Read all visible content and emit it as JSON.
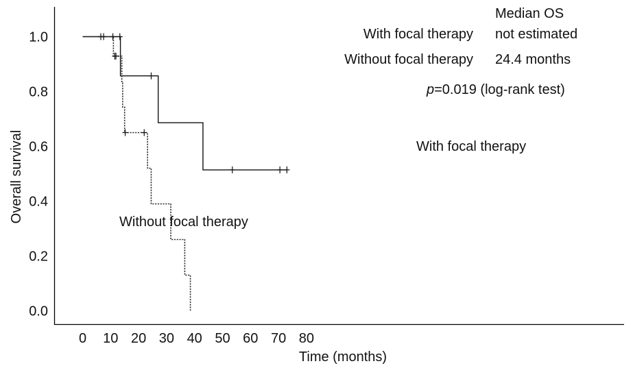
{
  "chart_data": {
    "type": "line",
    "subtype": "kaplan-meier",
    "xlabel": "Time (months)",
    "ylabel": "Overall survival",
    "xlim": [
      0,
      80
    ],
    "ylim": [
      0,
      1.0
    ],
    "xticks": [
      "0",
      "10",
      "20",
      "30",
      "40",
      "50",
      "60",
      "70",
      "80"
    ],
    "yticks": [
      "0.0",
      "0.2",
      "0.4",
      "0.6",
      "0.8",
      "1.0"
    ],
    "grid": false,
    "series": [
      {
        "name": "With focal therapy",
        "style": "solid",
        "steps": [
          [
            0,
            1.0
          ],
          [
            13.5,
            0.857
          ],
          [
            27,
            0.686
          ],
          [
            43,
            0.514
          ],
          [
            73,
            0.514
          ]
        ],
        "censored": [
          [
            6.5,
            1.0
          ],
          [
            7.5,
            1.0
          ],
          [
            10.8,
            1.0
          ],
          [
            13.3,
            1.0
          ],
          [
            24.5,
            0.857
          ],
          [
            53.5,
            0.514
          ],
          [
            70.5,
            0.514
          ],
          [
            73,
            0.514
          ]
        ]
      },
      {
        "name": "Without focal therapy",
        "style": "dotted",
        "steps": [
          [
            0,
            1.0
          ],
          [
            11,
            0.929
          ],
          [
            14,
            0.836
          ],
          [
            14.3,
            0.743
          ],
          [
            15,
            0.65
          ],
          [
            23.2,
            0.52
          ],
          [
            24.5,
            0.39
          ],
          [
            31.5,
            0.26
          ],
          [
            36.5,
            0.13
          ],
          [
            38.5,
            0.0
          ]
        ],
        "censored": [
          [
            11.5,
            0.929
          ],
          [
            11.9,
            0.929
          ],
          [
            15.2,
            0.65
          ],
          [
            22,
            0.65
          ]
        ]
      }
    ],
    "table": {
      "header": "Median OS",
      "rows": [
        {
          "label": "With focal therapy",
          "value": "not estimated"
        },
        {
          "label": "Without focal therapy",
          "value": "24.4 months"
        }
      ]
    },
    "pvalue": {
      "symbol": "p",
      "text": "=0.019 (log-rank test)"
    },
    "curve_labels": {
      "with": "With focal therapy",
      "without": "Without focal therapy"
    }
  }
}
